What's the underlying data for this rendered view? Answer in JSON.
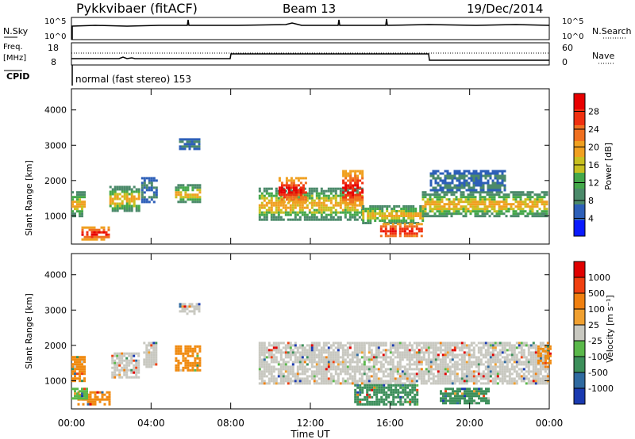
{
  "header": {
    "station": "Pykkvibaer (fitACF)",
    "beam": "Beam 13",
    "date": "19/Dec/2014"
  },
  "status_panels": {
    "nsky_label": "N.Sky",
    "nsearch_label": "N.Search",
    "nsky_left_ticks": [
      "10^5",
      "10^0"
    ],
    "nsky_right_ticks": [
      "10^5",
      "10^0"
    ],
    "freq_label": "Freq.",
    "freq_unit": "[MHz]",
    "freq_ticks": [
      "18",
      "8"
    ],
    "nave_label": "Nave",
    "nave_ticks": [
      "60",
      "0"
    ],
    "cpid_label": "CPID",
    "cpid_text": "normal (fast stereo) 153"
  },
  "chart_data": [
    {
      "type": "heatmap",
      "name": "power",
      "ylabel": "Slant Range [km]",
      "yticks": [
        1000,
        2000,
        3000,
        4000
      ],
      "ylim": [
        200,
        4600
      ],
      "xlim": [
        0,
        24
      ],
      "colorbar_label": "Power [dB]",
      "colorbar_ticks": [
        "28",
        "24",
        "20",
        "16",
        "12",
        "8",
        "4"
      ],
      "colorbar_colors": [
        "#0a1aff",
        "#2d5fb8",
        "#4b8a6a",
        "#44a84a",
        "#c8c020",
        "#f0a020",
        "#f07020",
        "#f03010",
        "#e80000"
      ],
      "regions": [
        {
          "t": [
            0.0,
            0.6
          ],
          "r": [
            1000,
            1700
          ],
          "level": "mid"
        },
        {
          "t": [
            0.5,
            1.9
          ],
          "r": [
            350,
            700
          ],
          "level": "high"
        },
        {
          "t": [
            1.9,
            3.4
          ],
          "r": [
            1150,
            1850
          ],
          "level": "mid"
        },
        {
          "t": [
            3.5,
            4.3
          ],
          "r": [
            1400,
            2100
          ],
          "level": "low"
        },
        {
          "t": [
            5.2,
            6.4
          ],
          "r": [
            1400,
            1900
          ],
          "level": "mid"
        },
        {
          "t": [
            5.4,
            6.4
          ],
          "r": [
            2900,
            3200
          ],
          "level": "low"
        },
        {
          "t": [
            9.4,
            14.6
          ],
          "r": [
            900,
            1800
          ],
          "level": "mid"
        },
        {
          "t": [
            10.4,
            11.8
          ],
          "r": [
            1400,
            2100
          ],
          "level": "high"
        },
        {
          "t": [
            13.6,
            14.6
          ],
          "r": [
            1300,
            2300
          ],
          "level": "high"
        },
        {
          "t": [
            14.6,
            17.6
          ],
          "r": [
            800,
            1300
          ],
          "level": "mid"
        },
        {
          "t": [
            15.5,
            17.6
          ],
          "r": [
            400,
            800
          ],
          "level": "high"
        },
        {
          "t": [
            17.6,
            23.9
          ],
          "r": [
            1000,
            1700
          ],
          "level": "mid"
        },
        {
          "t": [
            18.0,
            21.8
          ],
          "r": [
            1700,
            2300
          ],
          "level": "low"
        }
      ]
    },
    {
      "type": "heatmap",
      "name": "velocity",
      "ylabel": "Slant Range [km]",
      "xlabel": "Time UT",
      "yticks": [
        1000,
        2000,
        3000,
        4000
      ],
      "ylim": [
        200,
        4600
      ],
      "xlim": [
        0,
        24
      ],
      "xticks": [
        "00:00",
        "04:00",
        "08:00",
        "12:00",
        "16:00",
        "20:00",
        "00:00"
      ],
      "xtick_values": [
        0,
        4,
        8,
        12,
        16,
        20,
        24
      ],
      "colorbar_label": "Velocity [m s⁻¹]",
      "colorbar_ticks": [
        "1000",
        "500",
        "100",
        "25",
        "-25",
        "-100",
        "-500",
        "-1000"
      ],
      "colorbar_colors": [
        "#1a3ab0",
        "#2f6aa0",
        "#3c8f5a",
        "#5ab84a",
        "#c8c8c0",
        "#f0a030",
        "#f08010",
        "#f04010",
        "#e00000"
      ],
      "regions": [
        {
          "t": [
            0.0,
            0.7
          ],
          "r": [
            1000,
            1700
          ],
          "color": "#f08a10"
        },
        {
          "t": [
            0.3,
            1.9
          ],
          "r": [
            350,
            700
          ],
          "color": "#f08a10"
        },
        {
          "t": [
            0.0,
            0.8
          ],
          "r": [
            500,
            800
          ],
          "color": "#5ab84a"
        },
        {
          "t": [
            2.0,
            3.4
          ],
          "r": [
            1100,
            1800
          ],
          "color": "#c8c8c0"
        },
        {
          "t": [
            3.6,
            4.3
          ],
          "r": [
            1400,
            2100
          ],
          "color": "#c8c8c0"
        },
        {
          "t": [
            5.2,
            6.4
          ],
          "r": [
            1300,
            2000
          ],
          "color": "#f08a10"
        },
        {
          "t": [
            5.4,
            6.4
          ],
          "r": [
            2900,
            3200
          ],
          "color": "#c8c8c0"
        },
        {
          "t": [
            9.4,
            23.9
          ],
          "r": [
            900,
            2100
          ],
          "color": "#c8c8c0"
        },
        {
          "t": [
            14.2,
            17.4
          ],
          "r": [
            350,
            900
          ],
          "color": "#3c8f5a"
        },
        {
          "t": [
            18.5,
            21.0
          ],
          "r": [
            350,
            800
          ],
          "color": "#3c8f5a"
        },
        {
          "t": [
            23.4,
            24.0
          ],
          "r": [
            1500,
            2000
          ],
          "color": "#f08a10"
        }
      ]
    }
  ]
}
